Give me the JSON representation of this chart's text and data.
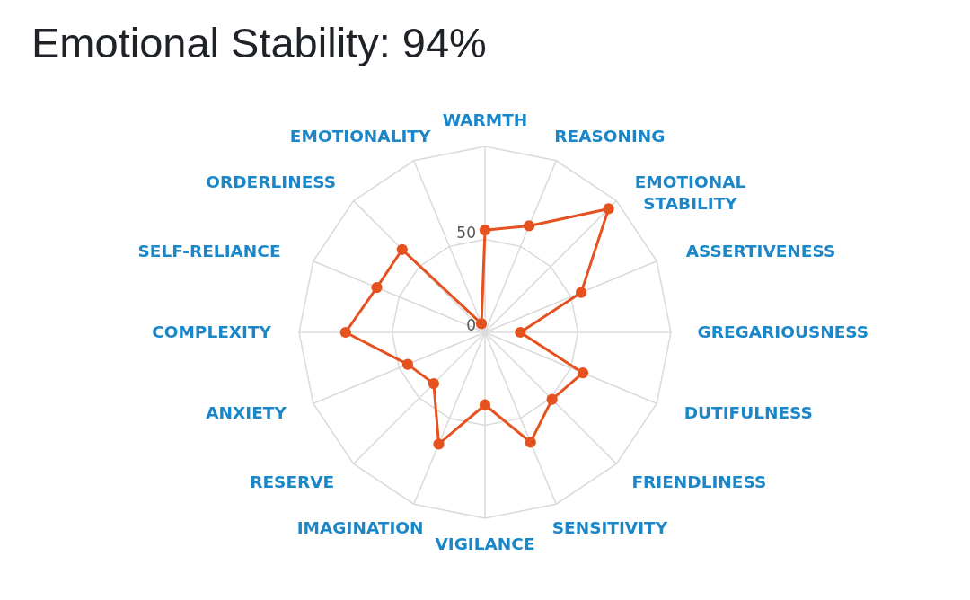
{
  "chart_data": {
    "type": "radar",
    "title": "Emotional Stability: 94%",
    "categories": [
      "WARMTH",
      "REASONING",
      "EMOTIONAL STABILITY",
      "ASSERTIVENESS",
      "GREGARIOUSNESS",
      "DUTIFULNESS",
      "FRIENDLINESS",
      "SENSITIVITY",
      "VIGILANCE",
      "IMAGINATION",
      "RESERVE",
      "ANXIETY",
      "COMPLEXITY",
      "SELF-RELIANCE",
      "ORDERLINESS",
      "EMOTIONALITY"
    ],
    "series": [
      {
        "color": "#e5511f",
        "values": [
          55,
          62,
          94,
          56,
          19,
          57,
          51,
          64,
          39,
          65,
          39,
          45,
          75,
          63,
          63,
          5
        ]
      }
    ],
    "ylim": [
      0,
      100
    ],
    "yticks": [
      0,
      50
    ],
    "grid": true,
    "marker": "circle",
    "line_style": "solid"
  }
}
